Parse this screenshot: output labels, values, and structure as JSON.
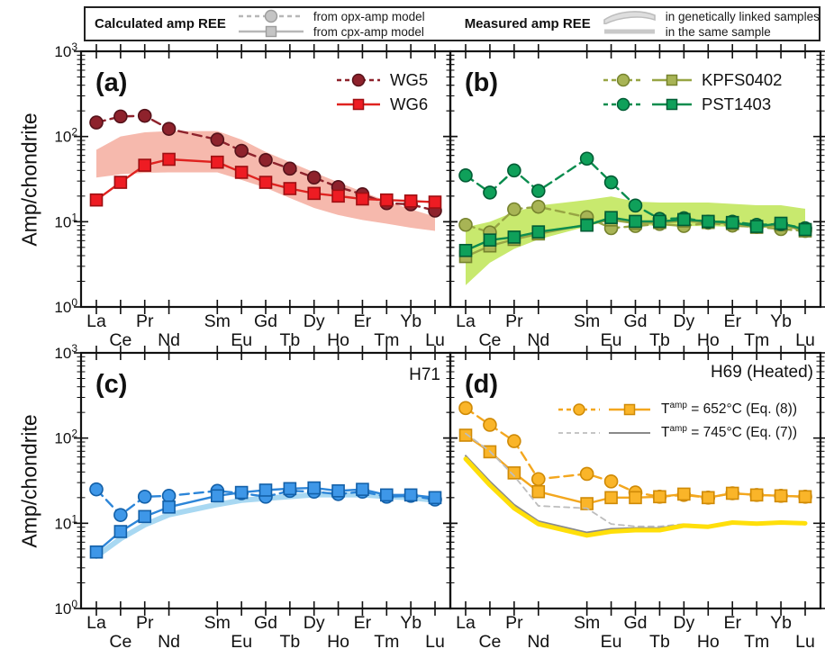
{
  "top_legend": {
    "calculated": {
      "title": "Calculated amp REE",
      "items": [
        {
          "glyph": "dashed-circle",
          "line": "dashed",
          "label": "from opx-amp model",
          "color": "#b7b7b7",
          "fill": "#c4c4c4",
          "edge": "#9c9c9c"
        },
        {
          "glyph": "solid-square",
          "line": "solid",
          "label": "from cpx-amp model",
          "color": "#b7b7b7",
          "fill": "#c4c4c4",
          "edge": "#9c9c9c"
        }
      ]
    },
    "measured": {
      "title": "Measured amp REE",
      "items": [
        {
          "glyph": "band",
          "label": "in genetically linked samples",
          "color": "#c7c7c7",
          "fill": "#dedede",
          "edge": "#bdbdbd"
        },
        {
          "glyph": "thick-line",
          "label": "in the same sample",
          "color": "#c9c9c9"
        }
      ]
    }
  },
  "axes": {
    "ylabel": "Amp/chondrite",
    "ytype": "log",
    "ylim": [
      1,
      1000
    ],
    "y_tick_exponents": [
      0,
      1,
      2,
      3
    ],
    "elements": [
      "La",
      "Ce",
      "Pr",
      "Nd",
      "Sm",
      "Eu",
      "Gd",
      "Tb",
      "Dy",
      "Ho",
      "Er",
      "Tm",
      "Yb",
      "Lu"
    ],
    "positions": [
      1,
      2,
      3,
      4,
      6,
      7,
      8,
      9,
      10,
      11,
      12,
      13,
      14,
      15
    ]
  },
  "chart_data": [
    {
      "type": "line",
      "id": "a",
      "panel_label": "(a)",
      "band": {
        "meaning": "measured amp REE in genetically linked samples",
        "color": "#f6b9ad",
        "upper": [
          70,
          100,
          112,
          116,
          116,
          92,
          66,
          50,
          38,
          29,
          22.5,
          17.5,
          14,
          11.5
        ],
        "lower": [
          33,
          36,
          37.5,
          38,
          38,
          31,
          25,
          19,
          14.5,
          12,
          10.5,
          9.5,
          8.5,
          7.8
        ]
      },
      "series": [
        {
          "name": "WG5",
          "model": "opx-amp model",
          "marker": "circle",
          "line": "dashed",
          "color": "#8e222c",
          "fill": "#8e222c",
          "edge": "#55121a",
          "values": [
            146,
            172,
            175,
            123,
            92,
            68,
            53,
            42,
            33,
            25.5,
            21,
            16.5,
            16,
            13.5
          ]
        },
        {
          "name": "WG6",
          "model": "cpx-amp model",
          "marker": "square",
          "line": "solid",
          "color": "#df221f",
          "fill": "#ee1c23",
          "edge": "#9e0f12",
          "values": [
            18,
            29,
            46,
            54,
            50,
            38,
            29,
            24.5,
            21.5,
            20,
            18.5,
            18,
            17.5,
            17
          ]
        }
      ]
    },
    {
      "type": "line",
      "id": "b",
      "panel_label": "(b)",
      "band": {
        "meaning": "measured amp REE in genetically linked samples",
        "color": "#c8e96e",
        "upper": [
          8.6,
          10,
          13,
          15.5,
          18,
          19.8,
          17.2,
          16.8,
          16.8,
          16.8,
          16.2,
          15.6,
          15.6,
          14.2
        ],
        "lower": [
          1.8,
          3.3,
          4.8,
          6.2,
          8.8,
          10.5,
          9.3,
          8.9,
          8.9,
          8.9,
          8.7,
          8.5,
          8.5,
          8
        ]
      },
      "series": [
        {
          "name": "KPFS0402",
          "model": "opx-amp model",
          "marker": "circle",
          "line": "dashed",
          "color": "#97a544",
          "fill": "#a8b455",
          "edge": "#76832e",
          "values": [
            9.2,
            7.5,
            14,
            15,
            11.3,
            8.4,
            8.9,
            9.4,
            8.9,
            9.7,
            9,
            8.7,
            8.2,
            7.8
          ]
        },
        {
          "name": "KPFS0402",
          "model": "cpx-amp model",
          "marker": "square",
          "line": "solid",
          "color": "#97a544",
          "fill": "#a8b455",
          "edge": "#76832e",
          "values": [
            3.9,
            5.2,
            6.2,
            7.2,
            9.3,
            10.5,
            9.6,
            9.8,
            10.2,
            9.8,
            9.5,
            8.6,
            9.2,
            7.8
          ]
        },
        {
          "name": "PST1403",
          "model": "opx-amp model",
          "marker": "circle",
          "line": "dashed",
          "color": "#0b8c4e",
          "fill": "#0fa05a",
          "edge": "#005c34",
          "values": [
            35,
            22,
            40,
            23,
            55,
            29,
            15.5,
            10.8,
            11,
            10,
            10,
            9.2,
            9.4,
            8.4
          ]
        },
        {
          "name": "PST1403",
          "model": "cpx-amp model",
          "marker": "square",
          "line": "solid",
          "color": "#0b8c4e",
          "fill": "#0fa05a",
          "edge": "#005c34",
          "values": [
            4.6,
            6.1,
            6.6,
            7.6,
            9.1,
            11.2,
            10.1,
            10.1,
            10.6,
            10.1,
            9.8,
            8.8,
            9.6,
            8.1
          ]
        }
      ]
    },
    {
      "type": "line",
      "id": "c",
      "panel_label": "(c)",
      "corner_label": "H71",
      "series": [
        {
          "name": "H71 measured (same sample)",
          "role": "measured-same-sample",
          "marker": null,
          "line": "solid",
          "width": 6,
          "color": "#a8d8f2",
          "values": [
            4.1,
            6.6,
            9.6,
            12.6,
            16.6,
            18.6,
            19.6,
            20.6,
            21.6,
            21.6,
            21.6,
            20.6,
            20,
            18.6
          ]
        },
        {
          "name": "H71 opx-amp model",
          "model": "opx-amp model",
          "marker": "circle",
          "line": "dashed",
          "color": "#2c85d8",
          "fill": "#3e97e8",
          "edge": "#1360a8",
          "values": [
            25,
            12.5,
            20.5,
            21,
            24,
            22.5,
            20.5,
            24,
            23.5,
            22,
            23.5,
            20.5,
            21,
            19
          ]
        },
        {
          "name": "H71 cpx-amp model",
          "model": "cpx-amp model",
          "marker": "square",
          "line": "solid",
          "color": "#2c85d8",
          "fill": "#3e97e8",
          "edge": "#1360a8",
          "values": [
            4.6,
            8,
            12,
            15.5,
            21,
            23,
            24.5,
            25.5,
            26,
            24,
            25,
            21.5,
            21.5,
            20
          ]
        }
      ]
    },
    {
      "type": "line",
      "id": "d",
      "panel_label": "(d)",
      "corner_label": "H69 (Heated)",
      "legend": [
        {
          "pre": "T",
          "sup": "amp",
          "post": " = 652°C (Eq. (8))"
        },
        {
          "pre": "T",
          "sup": "amp",
          "post": " = 745°C (Eq. (7))"
        }
      ],
      "series": [
        {
          "name": "Tamp 652C opx-amp model",
          "model": "opx-amp model",
          "marker": "circle",
          "line": "dashed",
          "color": "#f3a71f",
          "fill": "#fab529",
          "edge": "#cf8a06",
          "values": [
            225,
            143,
            92,
            33,
            38,
            31,
            23,
            20.5,
            21.5,
            20,
            22.5,
            21.5,
            21,
            20.5
          ]
        },
        {
          "name": "Tamp 652C cpx-amp model",
          "model": "cpx-amp model",
          "marker": "square",
          "line": "solid",
          "color": "#f3a71f",
          "fill": "#fab529",
          "edge": "#cf8a06",
          "values": [
            108,
            69,
            39,
            23.5,
            17,
            20,
            20,
            20.5,
            22,
            20,
            22.5,
            21.5,
            21,
            20.5
          ]
        },
        {
          "name": "Tamp 745C opx-amp model",
          "model": "opx-amp model",
          "marker": null,
          "line": "dashed",
          "dash": "6 5",
          "width": 1.8,
          "color": "#bdbdbd",
          "values": [
            113,
            70,
            36,
            16,
            15,
            9.8,
            9.2,
            9.2,
            9.8,
            9.3,
            10.3,
            9.8,
            10,
            9.8
          ]
        },
        {
          "name": "Tamp 745C cpx-amp model",
          "model": "cpx-amp model",
          "marker": null,
          "line": "solid",
          "width": 2,
          "color": "#8a8a8a",
          "values": [
            62,
            31,
            16.5,
            10.6,
            7.8,
            8.6,
            8.8,
            8.8,
            9.7,
            9.3,
            10.3,
            9.9,
            10.0,
            9.7
          ]
        },
        {
          "name": "H69 measured (same sample)",
          "role": "measured-same-sample",
          "marker": null,
          "line": "solid",
          "width": 5,
          "color": "#ffdf0a",
          "values": [
            57,
            28,
            15,
            9.8,
            7.2,
            8.0,
            8.3,
            8.3,
            9.4,
            9.1,
            10.2,
            9.9,
            10.2,
            10
          ]
        }
      ]
    }
  ]
}
